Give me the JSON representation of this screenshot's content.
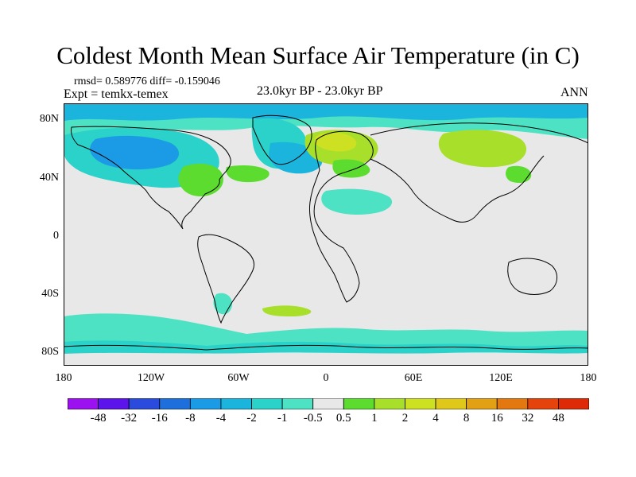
{
  "title": "Coldest Month Mean Surface Air Temperature (in C)",
  "stats": "rmsd= 0.589776  diff= -0.159046",
  "experiment": "Expt = temkx-temex",
  "period": "23.0kyr BP - 23.0kyr BP",
  "season": "ANN",
  "map_data": {
    "projection": "cylindrical equidistant",
    "lon_range": [
      -180,
      180
    ],
    "lat_range": [
      -90,
      90
    ],
    "x_ticks": [
      "180",
      "120W",
      "60W",
      "0",
      "60E",
      "120E",
      "180"
    ],
    "y_ticks": [
      "80N",
      "40N",
      "0",
      "40S",
      "80S"
    ],
    "background_color": "#e8e8e8",
    "regions": [
      {
        "name": "north-pacific-cooling",
        "bin": "-1",
        "lon": [
          -180,
          -140
        ],
        "lat": [
          70,
          50
        ]
      },
      {
        "name": "north-america-cooling",
        "bin": "-2",
        "lon": [
          -165,
          -100
        ],
        "lat": [
          40,
          80
        ]
      },
      {
        "name": "canada-cooling",
        "bin": "-4",
        "lon": [
          -150,
          -110
        ],
        "lat": [
          60,
          72
        ]
      },
      {
        "name": "us-warming",
        "bin": "1",
        "lon": [
          -100,
          -75
        ],
        "lat": [
          30,
          50
        ]
      },
      {
        "name": "atlantic-warming",
        "bin": "1",
        "lon": [
          -70,
          -45
        ],
        "lat": [
          35,
          45
        ]
      },
      {
        "name": "greenland-cooling",
        "bin": "-1",
        "lon": [
          -50,
          -20
        ],
        "lat": [
          60,
          80
        ]
      },
      {
        "name": "europe-warming",
        "bin": "2",
        "lon": [
          -5,
          30
        ],
        "lat": [
          50,
          70
        ]
      },
      {
        "name": "siberia-warming",
        "bin": "2",
        "lon": [
          85,
          135
        ],
        "lat": [
          50,
          70
        ]
      },
      {
        "name": "arctic-cooling",
        "bin": "-1",
        "lon": [
          -180,
          180
        ],
        "lat": [
          75,
          90
        ]
      },
      {
        "name": "sahara-cooling",
        "bin": "-0.5",
        "lon": [
          0,
          45
        ],
        "lat": [
          20,
          30
        ]
      },
      {
        "name": "southern-ocean-cooling",
        "bin": "-0.5",
        "lon": [
          -180,
          180
        ],
        "lat": [
          -80,
          -50
        ]
      },
      {
        "name": "south-atlantic-warming",
        "bin": "2",
        "lon": [
          -35,
          -10
        ],
        "lat": [
          -48,
          -55
        ]
      }
    ]
  },
  "colorbar": {
    "labels": [
      "-48",
      "-32",
      "-16",
      "-8",
      "-4",
      "-2",
      "-1",
      "-0.5",
      "0.5",
      "1",
      "2",
      "4",
      "8",
      "16",
      "32",
      "48"
    ],
    "colors": [
      "#9b11ef",
      "#5b14e9",
      "#2a4bdb",
      "#1d70db",
      "#1b9ae5",
      "#1ab4dd",
      "#2ad2c9",
      "#4de2c4",
      "#e8e8e8",
      "#5bdc2f",
      "#a7df2a",
      "#cde022",
      "#e0c81a",
      "#e2a015",
      "#e37810",
      "#e4440c",
      "#df2a08"
    ]
  }
}
